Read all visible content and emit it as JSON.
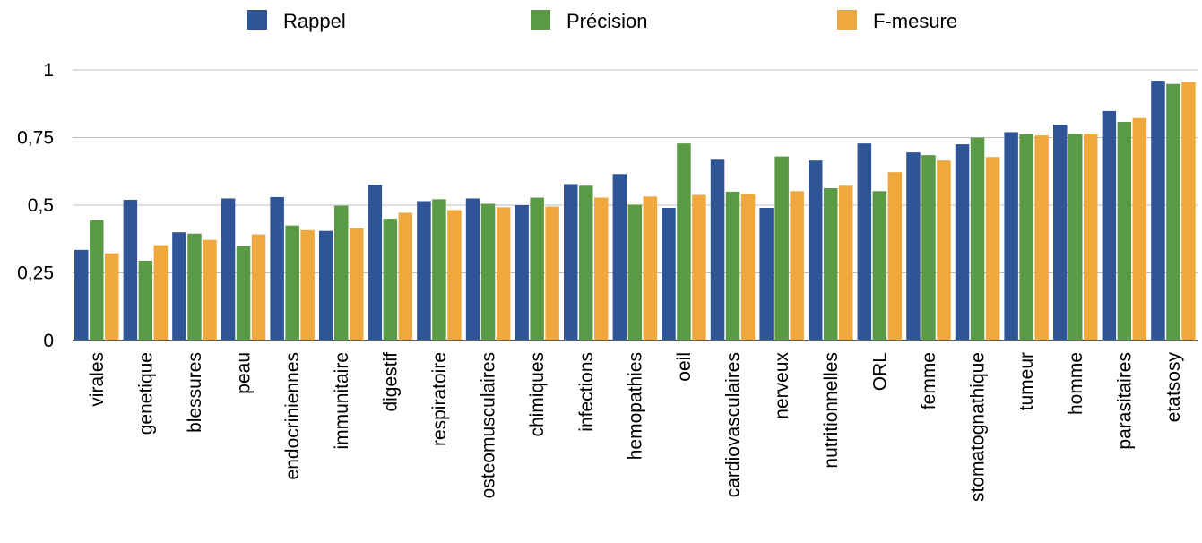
{
  "chart_data": {
    "type": "bar",
    "title": "",
    "xlabel": "",
    "ylabel": "",
    "ylim": [
      0,
      1
    ],
    "yticks": [
      0,
      0.25,
      0.5,
      0.75,
      1
    ],
    "ytick_labels": [
      "0",
      "0,25",
      "0,5",
      "0,75",
      "1"
    ],
    "grid": true,
    "legend_position": "top",
    "categories": [
      "virales",
      "genetique",
      "blessures",
      "peau",
      "endocriniennes",
      "immunitaire",
      "digestif",
      "respiratoire",
      "osteomusculaires",
      "chimiques",
      "infections",
      "hemopathies",
      "oeil",
      "cardiovasculaires",
      "nerveux",
      "nutritionnelles",
      "ORL",
      "femme",
      "stomatognathique",
      "tumeur",
      "homme",
      "parasitaires",
      "etatsosy"
    ],
    "series": [
      {
        "name": "Rappel",
        "color": "#2f5597",
        "values": [
          0.335,
          0.52,
          0.4,
          0.525,
          0.53,
          0.405,
          0.575,
          0.515,
          0.525,
          0.5,
          0.578,
          0.615,
          0.49,
          0.668,
          0.49,
          0.665,
          0.728,
          0.695,
          0.725,
          0.77,
          0.798,
          0.848,
          0.96
        ]
      },
      {
        "name": "Précision",
        "color": "#5b9a45",
        "values": [
          0.445,
          0.295,
          0.395,
          0.348,
          0.425,
          0.498,
          0.45,
          0.522,
          0.505,
          0.528,
          0.572,
          0.502,
          0.728,
          0.55,
          0.68,
          0.563,
          0.552,
          0.685,
          0.75,
          0.762,
          0.765,
          0.808,
          0.948
        ]
      },
      {
        "name": "F-mesure",
        "color": "#eea83d",
        "values": [
          0.322,
          0.352,
          0.372,
          0.392,
          0.408,
          0.415,
          0.472,
          0.482,
          0.492,
          0.495,
          0.528,
          0.532,
          0.538,
          0.542,
          0.552,
          0.572,
          0.622,
          0.665,
          0.678,
          0.758,
          0.765,
          0.822,
          0.955
        ]
      }
    ]
  }
}
